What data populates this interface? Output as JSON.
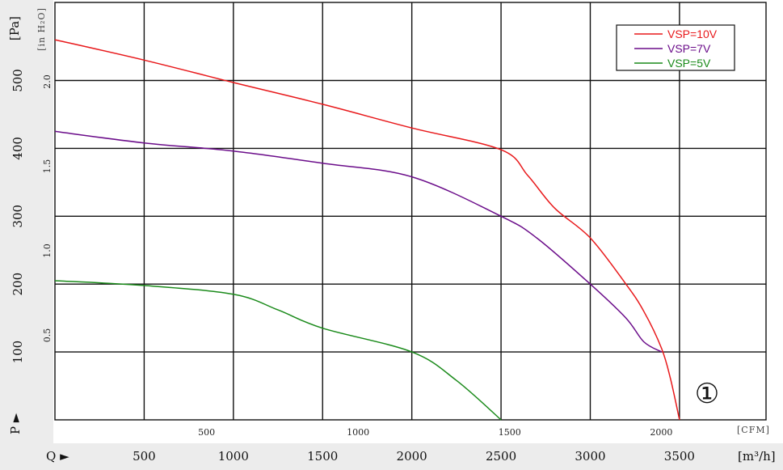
{
  "chart_data": {
    "type": "line",
    "x_axis_primary": {
      "unit": "[m³/h]",
      "prefix": "Q ►",
      "ticks": [
        500,
        1000,
        1500,
        2000,
        2500,
        3000,
        3500
      ],
      "range": [
        0,
        3985
      ]
    },
    "x_axis_secondary": {
      "unit": "[CFM]",
      "ticks": [
        500,
        1000,
        1500,
        2000
      ]
    },
    "y_axis_primary": {
      "unit": "[Pa]",
      "prefix": "P ►",
      "ticks": [
        100,
        200,
        300,
        400,
        500
      ],
      "range": [
        0,
        615
      ]
    },
    "y_axis_secondary": {
      "unit": "[in H₂O]",
      "ticks": [
        "0.5",
        "1.0",
        "1.5",
        "2.0"
      ],
      "tick_values": [
        0.5,
        1.0,
        1.5,
        2.0
      ]
    },
    "grid": true,
    "legend_position": "top-right",
    "annotation": "①",
    "series": [
      {
        "name": "VSP=10V",
        "color": "#e8191b",
        "x": [
          0,
          500,
          1000,
          1500,
          2000,
          2500,
          2650,
          2800,
          3000,
          3200,
          3300,
          3400,
          3450,
          3500
        ],
        "y": [
          560,
          530,
          497,
          465,
          430,
          398,
          360,
          312,
          268,
          200,
          160,
          105,
          60,
          0
        ]
      },
      {
        "name": "VSP=7V",
        "color": "#6b0d8a",
        "x": [
          0,
          500,
          1000,
          1500,
          2000,
          2500,
          2700,
          3000,
          3200,
          3300,
          3400
        ],
        "y": [
          425,
          408,
          396,
          378,
          358,
          300,
          268,
          200,
          150,
          115,
          100
        ]
      },
      {
        "name": "VSP=5V",
        "color": "#1a8a1a",
        "x": [
          0,
          500,
          1000,
          1250,
          1500,
          2000,
          2250,
          2500
        ],
        "y": [
          205,
          198,
          185,
          162,
          135,
          100,
          58,
          0
        ]
      }
    ]
  }
}
